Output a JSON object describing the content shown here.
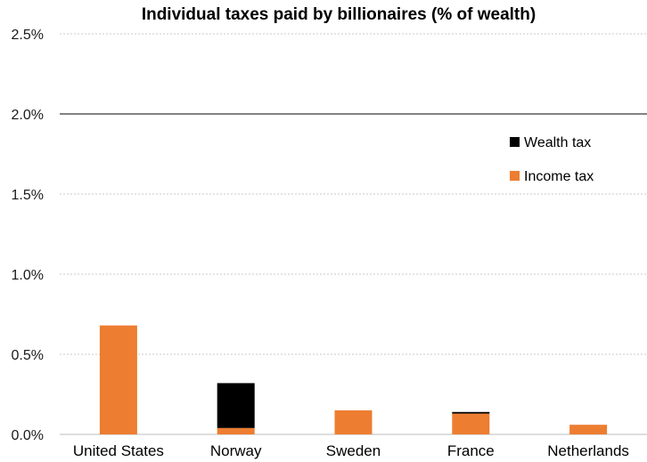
{
  "chart_data": {
    "type": "bar",
    "stacked": true,
    "title": "Individual taxes paid by billionaires (% of wealth)",
    "xlabel": "",
    "ylabel": "",
    "ylim": [
      0,
      2.5
    ],
    "yticks": [
      "0.0%",
      "0.5%",
      "1.0%",
      "1.5%",
      "2.0%",
      "2.5%"
    ],
    "ytick_values": [
      0,
      0.5,
      1.0,
      1.5,
      2.0,
      2.5
    ],
    "reference_line": 2.0,
    "grid": true,
    "legend_position": "right",
    "categories": [
      "United States",
      "Norway",
      "Sweden",
      "France",
      "Netherlands"
    ],
    "series": [
      {
        "name": "Income tax",
        "color": "#ED7D31",
        "values": [
          0.68,
          0.04,
          0.15,
          0.13,
          0.06
        ]
      },
      {
        "name": "Wealth tax",
        "color": "#000000",
        "values": [
          0.0,
          0.28,
          0.0,
          0.01,
          0.0
        ]
      }
    ]
  }
}
